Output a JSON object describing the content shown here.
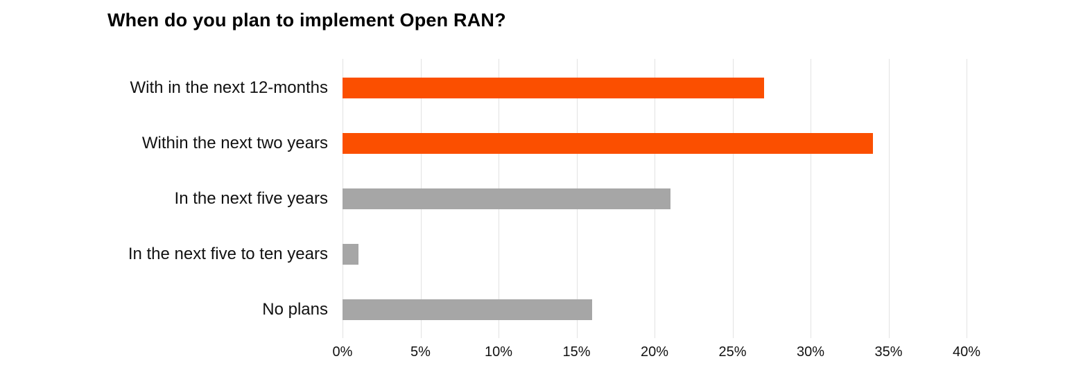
{
  "chart_data": {
    "type": "bar",
    "orientation": "horizontal",
    "title": "When do you plan to implement Open RAN?",
    "categories": [
      "With in the next 12-months",
      "Within the next two years",
      "In the next five years",
      "In the next five to ten years",
      "No plans"
    ],
    "values": [
      27,
      34,
      21,
      1,
      16
    ],
    "bar_colors": [
      "#FB4F00",
      "#FB4F00",
      "#A6A6A6",
      "#A6A6A6",
      "#A6A6A6"
    ],
    "x_tick_labels": [
      "0%",
      "5%",
      "10%",
      "15%",
      "20%",
      "25%",
      "30%",
      "35%",
      "40%"
    ],
    "x_tick_values": [
      0,
      5,
      10,
      15,
      20,
      25,
      30,
      35,
      40
    ],
    "xlim": [
      0,
      40
    ],
    "xlabel": "",
    "ylabel": "",
    "grid": "vertical",
    "gridline_color": "#e2e2e2",
    "legend": "none",
    "background_color": "#ffffff",
    "title_color": "#000000",
    "label_color": "#111111"
  }
}
